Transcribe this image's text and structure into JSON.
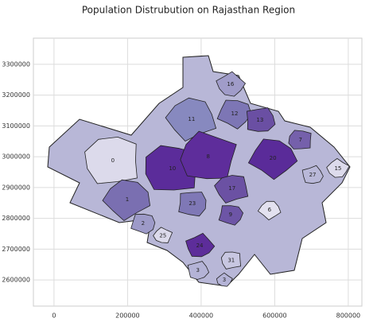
{
  "chart_data": {
    "type": "map",
    "title": "Population Distrubution on Rajasthan Region",
    "xlim": [
      -56000,
      837000
    ],
    "ylim": [
      2515000,
      3385000
    ],
    "xticks": [
      0,
      200000,
      400000,
      600000,
      800000
    ],
    "yticks": [
      2600000,
      2700000,
      2800000,
      2900000,
      3000000,
      3100000,
      3200000,
      3300000
    ],
    "grid": true,
    "regions": [
      {
        "label": "0",
        "x": 160000,
        "y": 2987000,
        "color": "#dcdaeb"
      },
      {
        "label": "1",
        "x": 199000,
        "y": 2861000,
        "color": "#7a6fb1"
      },
      {
        "label": "2",
        "x": 242000,
        "y": 2783000,
        "color": "#9d9ac8"
      },
      {
        "label": "3",
        "x": 391000,
        "y": 2631000,
        "color": "#b4b3d6"
      },
      {
        "label": "3",
        "x": 463000,
        "y": 2600000,
        "color": "#b4b3d6"
      },
      {
        "label": "10",
        "x": 322000,
        "y": 2962000,
        "color": "#5b2c9a"
      },
      {
        "label": "11",
        "x": 374000,
        "y": 3122000,
        "color": "#8789bf"
      },
      {
        "label": "12",
        "x": 491000,
        "y": 3140000,
        "color": "#7d76b5"
      },
      {
        "label": "13",
        "x": 560000,
        "y": 3119000,
        "color": "#6a4fa3"
      },
      {
        "label": "16",
        "x": 480000,
        "y": 3235000,
        "color": "#a09cc9"
      },
      {
        "label": "8",
        "x": 419000,
        "y": 3000000,
        "color": "#5e2d9b"
      },
      {
        "label": "17",
        "x": 484000,
        "y": 2897000,
        "color": "#6b51a3"
      },
      {
        "label": "20",
        "x": 595000,
        "y": 2995000,
        "color": "#5a2b99"
      },
      {
        "label": "23",
        "x": 376000,
        "y": 2848000,
        "color": "#7f78b6"
      },
      {
        "label": "24",
        "x": 396000,
        "y": 2711000,
        "color": "#5d2d9a"
      },
      {
        "label": "25",
        "x": 296000,
        "y": 2744000,
        "color": "#dcdaeb"
      },
      {
        "label": "31",
        "x": 482000,
        "y": 2664000,
        "color": "#c8c7e1"
      },
      {
        "label": "6",
        "x": 586000,
        "y": 2827000,
        "color": "#e3e1ef"
      },
      {
        "label": "9",
        "x": 480000,
        "y": 2812000,
        "color": "#6d55a6"
      },
      {
        "label": "27",
        "x": 703000,
        "y": 2941000,
        "color": "#b9b8d8"
      },
      {
        "label": "15",
        "x": 772000,
        "y": 2962000,
        "color": "#dddbec"
      },
      {
        "label": "7",
        "x": 670000,
        "y": 3054000,
        "color": "#7560ab"
      }
    ]
  }
}
